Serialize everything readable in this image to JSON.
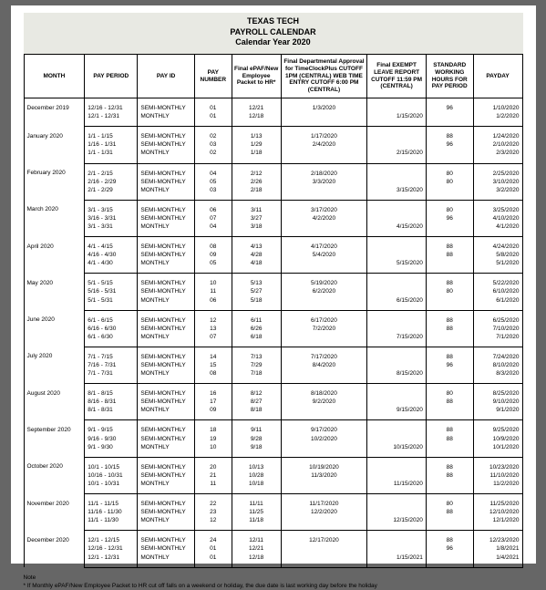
{
  "title": {
    "line1": "TEXAS TECH",
    "line2": "PAYROLL CALENDAR",
    "line3": "Calendar Year 2020"
  },
  "headers": {
    "month": "MONTH",
    "pay_period": "PAY PERIOD",
    "pay_id": "PAY ID",
    "pay_number": "PAY NUMBER",
    "epaf": "Final ePAF/New Employee Packet to HR*",
    "dept": "Final Departmental Approval for TimeClockPlus CUTOFF 1PM (CENTRAL) WEB TIME ENTRY CUTOFF 6:00 PM (CENTRAL)",
    "exempt": "Final EXEMPT LEAVE REPORT CUTOFF 11:59 PM (CENTRAL)",
    "hours": "STANDARD WORKING HOURS FOR PAY PERIOD",
    "payday": "PAYDAY"
  },
  "months": [
    {
      "month": "December 2019",
      "rows": [
        {
          "pp": "12/16 - 12/31",
          "pid": "SEMI-MONTHLY",
          "pnum": "01",
          "epaf": "12/21",
          "dept": "1/3/2020",
          "exempt": "",
          "hrs": "96",
          "pay": "1/10/2020"
        },
        {
          "pp": "12/1 - 12/31",
          "pid": "MONTHLY",
          "pnum": "01",
          "epaf": "12/18",
          "dept": "",
          "exempt": "1/15/2020",
          "hrs": "",
          "pay": "1/2/2020"
        }
      ]
    },
    {
      "month": "January 2020",
      "rows": [
        {
          "pp": "1/1 - 1/15",
          "pid": "SEMI-MONTHLY",
          "pnum": "02",
          "epaf": "1/13",
          "dept": "1/17/2020",
          "exempt": "",
          "hrs": "88",
          "pay": "1/24/2020"
        },
        {
          "pp": "1/16 - 1/31",
          "pid": "SEMI-MONTHLY",
          "pnum": "03",
          "epaf": "1/29",
          "dept": "2/4/2020",
          "exempt": "",
          "hrs": "96",
          "pay": "2/10/2020"
        },
        {
          "pp": "1/1 - 1/31",
          "pid": "MONTHLY",
          "pnum": "02",
          "epaf": "1/18",
          "dept": "",
          "exempt": "2/15/2020",
          "hrs": "",
          "pay": "2/3/2020"
        }
      ]
    },
    {
      "month": "February 2020",
      "rows": [
        {
          "pp": "2/1 - 2/15",
          "pid": "SEMI-MONTHLY",
          "pnum": "04",
          "epaf": "2/12",
          "dept": "2/18/2020",
          "exempt": "",
          "hrs": "80",
          "pay": "2/25/2020"
        },
        {
          "pp": "2/16 - 2/29",
          "pid": "SEMI-MONTHLY",
          "pnum": "05",
          "epaf": "2/26",
          "dept": "3/3/2020",
          "exempt": "",
          "hrs": "80",
          "pay": "3/10/2020"
        },
        {
          "pp": "2/1 - 2/29",
          "pid": "MONTHLY",
          "pnum": "03",
          "epaf": "2/18",
          "dept": "",
          "exempt": "3/15/2020",
          "hrs": "",
          "pay": "3/2/2020"
        }
      ]
    },
    {
      "month": "March 2020",
      "rows": [
        {
          "pp": "3/1 - 3/15",
          "pid": "SEMI-MONTHLY",
          "pnum": "06",
          "epaf": "3/11",
          "dept": "3/17/2020",
          "exempt": "",
          "hrs": "80",
          "pay": "3/25/2020"
        },
        {
          "pp": "3/16 - 3/31",
          "pid": "SEMI-MONTHLY",
          "pnum": "07",
          "epaf": "3/27",
          "dept": "4/2/2020",
          "exempt": "",
          "hrs": "96",
          "pay": "4/10/2020"
        },
        {
          "pp": "3/1 - 3/31",
          "pid": "MONTHLY",
          "pnum": "04",
          "epaf": "3/18",
          "dept": "",
          "exempt": "4/15/2020",
          "hrs": "",
          "pay": "4/1/2020"
        }
      ]
    },
    {
      "month": "April 2020",
      "rows": [
        {
          "pp": "4/1 - 4/15",
          "pid": "SEMI-MONTHLY",
          "pnum": "08",
          "epaf": "4/13",
          "dept": "4/17/2020",
          "exempt": "",
          "hrs": "88",
          "pay": "4/24/2020"
        },
        {
          "pp": "4/16 - 4/30",
          "pid": "SEMI-MONTHLY",
          "pnum": "09",
          "epaf": "4/28",
          "dept": "5/4/2020",
          "exempt": "",
          "hrs": "88",
          "pay": "5/8/2020"
        },
        {
          "pp": "4/1 - 4/30",
          "pid": "MONTHLY",
          "pnum": "05",
          "epaf": "4/18",
          "dept": "",
          "exempt": "5/15/2020",
          "hrs": "",
          "pay": "5/1/2020"
        }
      ]
    },
    {
      "month": "May 2020",
      "rows": [
        {
          "pp": "5/1 - 5/15",
          "pid": "SEMI-MONTHLY",
          "pnum": "10",
          "epaf": "5/13",
          "dept": "5/19/2020",
          "exempt": "",
          "hrs": "88",
          "pay": "5/22/2020"
        },
        {
          "pp": "5/16 - 5/31",
          "pid": "SEMI-MONTHLY",
          "pnum": "11",
          "epaf": "5/27",
          "dept": "6/2/2020",
          "exempt": "",
          "hrs": "80",
          "pay": "6/10/2020"
        },
        {
          "pp": "5/1 - 5/31",
          "pid": "MONTHLY",
          "pnum": "06",
          "epaf": "5/18",
          "dept": "",
          "exempt": "6/15/2020",
          "hrs": "",
          "pay": "6/1/2020"
        }
      ]
    },
    {
      "month": "June 2020",
      "rows": [
        {
          "pp": "6/1 - 6/15",
          "pid": "SEMI-MONTHLY",
          "pnum": "12",
          "epaf": "6/11",
          "dept": "6/17/2020",
          "exempt": "",
          "hrs": "88",
          "pay": "6/25/2020"
        },
        {
          "pp": "6/16 - 6/30",
          "pid": "SEMI-MONTHLY",
          "pnum": "13",
          "epaf": "6/26",
          "dept": "7/2/2020",
          "exempt": "",
          "hrs": "88",
          "pay": "7/10/2020"
        },
        {
          "pp": "6/1 - 6/30",
          "pid": "MONTHLY",
          "pnum": "07",
          "epaf": "6/18",
          "dept": "",
          "exempt": "7/15/2020",
          "hrs": "",
          "pay": "7/1/2020"
        }
      ]
    },
    {
      "month": "July 2020",
      "rows": [
        {
          "pp": "7/1 - 7/15",
          "pid": "SEMI-MONTHLY",
          "pnum": "14",
          "epaf": "7/13",
          "dept": "7/17/2020",
          "exempt": "",
          "hrs": "88",
          "pay": "7/24/2020"
        },
        {
          "pp": "7/16 - 7/31",
          "pid": "SEMI-MONTHLY",
          "pnum": "15",
          "epaf": "7/29",
          "dept": "8/4/2020",
          "exempt": "",
          "hrs": "96",
          "pay": "8/10/2020"
        },
        {
          "pp": "7/1 - 7/31",
          "pid": "MONTHLY",
          "pnum": "08",
          "epaf": "7/18",
          "dept": "",
          "exempt": "8/15/2020",
          "hrs": "",
          "pay": "8/3/2020"
        }
      ]
    },
    {
      "month": "August 2020",
      "rows": [
        {
          "pp": "8/1 - 8/15",
          "pid": "SEMI-MONTHLY",
          "pnum": "16",
          "epaf": "8/12",
          "dept": "8/18/2020",
          "exempt": "",
          "hrs": "80",
          "pay": "8/25/2020"
        },
        {
          "pp": "8/16 - 8/31",
          "pid": "SEMI-MONTHLY",
          "pnum": "17",
          "epaf": "8/27",
          "dept": "9/2/2020",
          "exempt": "",
          "hrs": "88",
          "pay": "9/10/2020"
        },
        {
          "pp": "8/1 - 8/31",
          "pid": "MONTHLY",
          "pnum": "09",
          "epaf": "8/18",
          "dept": "",
          "exempt": "9/15/2020",
          "hrs": "",
          "pay": "9/1/2020"
        }
      ]
    },
    {
      "month": "September 2020",
      "rows": [
        {
          "pp": "9/1 - 9/15",
          "pid": "SEMI-MONTHLY",
          "pnum": "18",
          "epaf": "9/11",
          "dept": "9/17/2020",
          "exempt": "",
          "hrs": "88",
          "pay": "9/25/2020"
        },
        {
          "pp": "9/16 - 9/30",
          "pid": "SEMI-MONTHLY",
          "pnum": "19",
          "epaf": "9/28",
          "dept": "10/2/2020",
          "exempt": "",
          "hrs": "88",
          "pay": "10/9/2020"
        },
        {
          "pp": "9/1 - 9/30",
          "pid": "MONTHLY",
          "pnum": "10",
          "epaf": "9/18",
          "dept": "",
          "exempt": "10/15/2020",
          "hrs": "",
          "pay": "10/1/2020"
        }
      ]
    },
    {
      "month": "October 2020",
      "rows": [
        {
          "pp": "10/1 - 10/15",
          "pid": "SEMI-MONTHLY",
          "pnum": "20",
          "epaf": "10/13",
          "dept": "10/19/2020",
          "exempt": "",
          "hrs": "88",
          "pay": "10/23/2020"
        },
        {
          "pp": "10/16 - 10/31",
          "pid": "SEMI-MONTHLY",
          "pnum": "21",
          "epaf": "10/28",
          "dept": "11/3/2020",
          "exempt": "",
          "hrs": "88",
          "pay": "11/10/2020"
        },
        {
          "pp": "10/1 - 10/31",
          "pid": "MONTHLY",
          "pnum": "11",
          "epaf": "10/18",
          "dept": "",
          "exempt": "11/15/2020",
          "hrs": "",
          "pay": "11/2/2020"
        }
      ]
    },
    {
      "month": "November 2020",
      "rows": [
        {
          "pp": "11/1 - 11/15",
          "pid": "SEMI-MONTHLY",
          "pnum": "22",
          "epaf": "11/11",
          "dept": "11/17/2020",
          "exempt": "",
          "hrs": "80",
          "pay": "11/25/2020"
        },
        {
          "pp": "11/16 - 11/30",
          "pid": "SEMI-MONTHLY",
          "pnum": "23",
          "epaf": "11/25",
          "dept": "12/2/2020",
          "exempt": "",
          "hrs": "88",
          "pay": "12/10/2020"
        },
        {
          "pp": "11/1 - 11/30",
          "pid": "MONTHLY",
          "pnum": "12",
          "epaf": "11/18",
          "dept": "",
          "exempt": "12/15/2020",
          "hrs": "",
          "pay": "12/1/2020"
        }
      ]
    },
    {
      "month": "December 2020",
      "rows": [
        {
          "pp": "12/1 - 12/15",
          "pid": "SEMI-MONTHLY",
          "pnum": "24",
          "epaf": "12/11",
          "dept": "12/17/2020",
          "exempt": "",
          "hrs": "88",
          "pay": "12/23/2020"
        },
        {
          "pp": "12/16 - 12/31",
          "pid": "SEMI-MONTHLY",
          "pnum": "01",
          "epaf": "12/21",
          "dept": "",
          "exempt": "",
          "hrs": "96",
          "pay": "1/8/2021"
        },
        {
          "pp": "12/1 - 12/31",
          "pid": "MONTHLY",
          "pnum": "01",
          "epaf": "12/18",
          "dept": "",
          "exempt": "1/15/2021",
          "hrs": "",
          "pay": "1/4/2021"
        }
      ]
    }
  ],
  "note": {
    "heading": "Note",
    "text": "* If Monthly ePAF/New Employee Packet to HR cut off falls on a weekend or holiday, the due date is last working day before the holiday"
  }
}
